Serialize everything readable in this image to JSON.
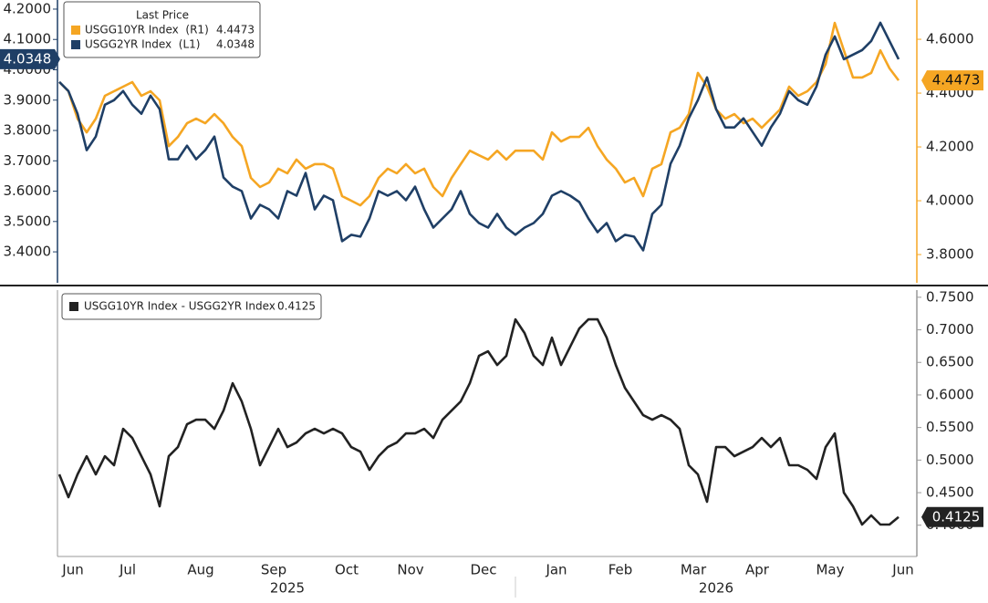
{
  "chart_data": [
    {
      "type": "line",
      "legend_title": "Last Price",
      "ylim": [
        3.298,
        4.23
      ],
      "yticks": [
        {
          "value": 3.4,
          "label": "3.4000"
        },
        {
          "value": 3.5,
          "label": "3.5000"
        },
        {
          "value": 3.6,
          "label": "3.6000"
        },
        {
          "value": 3.7,
          "label": "3.7000"
        },
        {
          "value": 3.8,
          "label": "3.8000"
        },
        {
          "value": 3.9,
          "label": "3.9000"
        },
        {
          "value": 4.0,
          "label": "4.0000"
        },
        {
          "value": 4.1,
          "label": "4.1000"
        },
        {
          "value": 4.2,
          "label": "4.2000"
        }
      ],
      "y2lim": [
        3.695,
        4.746
      ],
      "y2ticks": [
        {
          "value": 3.8,
          "label": "3.8000"
        },
        {
          "value": 4.0,
          "label": "4.0000"
        },
        {
          "value": 4.2,
          "label": "4.2000"
        },
        {
          "value": 4.4,
          "label": "4.4000"
        },
        {
          "value": 4.6,
          "label": "4.6000"
        }
      ],
      "series": [
        {
          "name": "USGG10YR Index  (R1)",
          "color": "#f5a623",
          "axis": "y2",
          "values": [
            4.441,
            4.407,
            4.305,
            4.254,
            4.305,
            4.39,
            4.407,
            4.424,
            4.441,
            4.39,
            4.407,
            4.373,
            4.203,
            4.237,
            4.288,
            4.305,
            4.288,
            4.322,
            4.288,
            4.237,
            4.203,
            4.085,
            4.051,
            4.068,
            4.119,
            4.102,
            4.153,
            4.119,
            4.136,
            4.136,
            4.119,
            4.017,
            4.0,
            3.983,
            4.017,
            4.085,
            4.119,
            4.102,
            4.136,
            4.102,
            4.119,
            4.051,
            4.017,
            4.085,
            4.136,
            4.186,
            4.169,
            4.153,
            4.186,
            4.153,
            4.186,
            4.186,
            4.186,
            4.153,
            4.254,
            4.22,
            4.237,
            4.237,
            4.271,
            4.203,
            4.153,
            4.119,
            4.068,
            4.085,
            4.017,
            4.119,
            4.136,
            4.254,
            4.271,
            4.322,
            4.475,
            4.424,
            4.339,
            4.305,
            4.322,
            4.288,
            4.305,
            4.271,
            4.305,
            4.339,
            4.424,
            4.39,
            4.407,
            4.441,
            4.508,
            4.661,
            4.559,
            4.458,
            4.458,
            4.475,
            4.559,
            4.492,
            4.4473
          ]
        },
        {
          "name": "USGG2YR Index  (L1)",
          "color": "#1f3f66",
          "values": [
            3.96,
            3.93,
            3.855,
            3.735,
            3.78,
            3.885,
            3.9,
            3.93,
            3.885,
            3.855,
            3.915,
            3.87,
            3.705,
            3.705,
            3.75,
            3.705,
            3.735,
            3.78,
            3.645,
            3.615,
            3.6,
            3.51,
            3.555,
            3.54,
            3.51,
            3.6,
            3.585,
            3.66,
            3.54,
            3.585,
            3.57,
            3.435,
            3.456,
            3.45,
            3.51,
            3.6,
            3.585,
            3.6,
            3.57,
            3.615,
            3.54,
            3.48,
            3.51,
            3.54,
            3.6,
            3.525,
            3.495,
            3.48,
            3.525,
            3.48,
            3.456,
            3.48,
            3.495,
            3.525,
            3.585,
            3.6,
            3.585,
            3.564,
            3.51,
            3.465,
            3.495,
            3.435,
            3.456,
            3.45,
            3.405,
            3.525,
            3.555,
            3.69,
            3.75,
            3.84,
            3.9,
            3.975,
            3.87,
            3.81,
            3.81,
            3.84,
            3.795,
            3.75,
            3.81,
            3.855,
            3.93,
            3.9,
            3.885,
            3.945,
            4.05,
            4.11,
            4.035,
            4.05,
            4.065,
            4.095,
            4.155,
            4.095,
            4.0348
          ]
        }
      ]
    },
    {
      "type": "line",
      "categories": [
        null,
        "Jun",
        null,
        null,
        null,
        null,
        null,
        "Jul",
        null,
        null,
        null,
        null,
        null,
        null,
        null,
        "Aug",
        null,
        null,
        null,
        null,
        null,
        null,
        null,
        "Sep",
        null,
        null,
        null,
        null,
        null,
        null,
        null,
        "Oct",
        null,
        null,
        null,
        null,
        null,
        null,
        "Nov",
        null,
        null,
        null,
        null,
        null,
        null,
        null,
        "Dec",
        null,
        null,
        null,
        null,
        null,
        null,
        null,
        "Jan",
        null,
        null,
        null,
        null,
        null,
        null,
        "Feb",
        null,
        null,
        null,
        null,
        null,
        null,
        null,
        "Mar",
        null,
        null,
        null,
        null,
        null,
        null,
        "Apr",
        null,
        null,
        null,
        null,
        null,
        null,
        null,
        "May",
        null,
        null,
        null,
        null,
        null,
        null,
        null,
        "Jun"
      ],
      "year_labels": [
        "2025",
        "2026"
      ],
      "ylim": [
        0.352,
        0.761
      ],
      "yticks": [
        {
          "value": 0.4,
          "label": "0.4000"
        },
        {
          "value": 0.45,
          "label": "0.4500"
        },
        {
          "value": 0.5,
          "label": "0.5000"
        },
        {
          "value": 0.55,
          "label": "0.5500"
        },
        {
          "value": 0.6,
          "label": "0.6000"
        },
        {
          "value": 0.65,
          "label": "0.6500"
        },
        {
          "value": 0.7,
          "label": "0.7000"
        },
        {
          "value": 0.75,
          "label": "0.7500"
        }
      ],
      "series": [
        {
          "name": "USGG10YR Index - USGG2YR Index",
          "color": "#222222",
          "values": [
            0.478,
            0.443,
            0.478,
            0.506,
            0.478,
            0.506,
            0.492,
            0.548,
            0.534,
            0.506,
            0.478,
            0.429,
            0.506,
            0.52,
            0.555,
            0.562,
            0.562,
            0.548,
            0.576,
            0.618,
            0.59,
            0.548,
            0.492,
            0.52,
            0.548,
            0.52,
            0.527,
            0.541,
            0.548,
            0.541,
            0.548,
            0.541,
            0.52,
            0.513,
            0.485,
            0.506,
            0.52,
            0.527,
            0.541,
            0.541,
            0.548,
            0.534,
            0.562,
            0.576,
            0.59,
            0.618,
            0.66,
            0.667,
            0.646,
            0.66,
            0.716,
            0.695,
            0.66,
            0.646,
            0.688,
            0.646,
            0.674,
            0.702,
            0.716,
            0.716,
            0.688,
            0.646,
            0.611,
            0.59,
            0.569,
            0.562,
            0.569,
            0.562,
            0.548,
            0.492,
            0.478,
            0.436,
            0.52,
            0.52,
            0.506,
            0.513,
            0.52,
            0.534,
            0.52,
            0.534,
            0.492,
            0.492,
            0.485,
            0.471,
            0.52,
            0.541,
            0.45,
            0.429,
            0.401,
            0.415,
            0.401,
            0.401,
            0.4125
          ]
        }
      ]
    }
  ]
}
